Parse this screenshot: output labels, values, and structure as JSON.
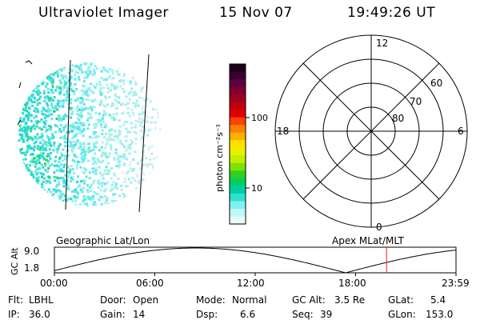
{
  "header": {
    "instrument": "Ultraviolet Imager",
    "date": "15 Nov 07",
    "time": "19:49:26 UT"
  },
  "colorbar": {
    "label": "photon cm⁻²s⁻¹",
    "ticks": [
      "100",
      "10"
    ],
    "colors": [
      "#1a0018",
      "#3a0030",
      "#5c0040",
      "#800030",
      "#a00020",
      "#c00010",
      "#e00000",
      "#ff4000",
      "#ff8000",
      "#ffb000",
      "#ffe000",
      "#e8f000",
      "#c0f000",
      "#80e000",
      "#30d020",
      "#00d060",
      "#00d0a0",
      "#30e0d0",
      "#80f0f0",
      "#c0f8f8",
      "#e8fcfc"
    ]
  },
  "polar": {
    "mlt_labels": {
      "top": "12",
      "left": "18",
      "right": "6",
      "bottom": "0"
    },
    "lat_labels": [
      "60",
      "70",
      "80"
    ]
  },
  "altitude_plot": {
    "y_axis_label": "GC Alt",
    "y_ticks": [
      "9.0",
      "1.8"
    ],
    "left_caption": "Geographic Lat/Lon",
    "right_caption": "Apex MLat/MLT",
    "x_ticks": [
      "00:00",
      "06:00",
      "12:00",
      "18:00",
      "23:59"
    ],
    "current_time_fraction": 0.827
  },
  "footer": {
    "row1": [
      {
        "key": "Flt:",
        "value": "LBHL"
      },
      {
        "key": "Door:",
        "value": "Open"
      },
      {
        "key": "Mode:",
        "value": "Normal"
      },
      {
        "key": "GC Alt:",
        "value": "3.5 Re"
      },
      {
        "key": "GLat:",
        "value": "5.4"
      }
    ],
    "row2": [
      {
        "key": "IP:",
        "value": "36.0"
      },
      {
        "key": "Gain:",
        "value": "14"
      },
      {
        "key": "Dsp:",
        "value": "6.6"
      },
      {
        "key": "Seq:",
        "value": "39"
      },
      {
        "key": "GLon:",
        "value": "153.0"
      }
    ]
  }
}
